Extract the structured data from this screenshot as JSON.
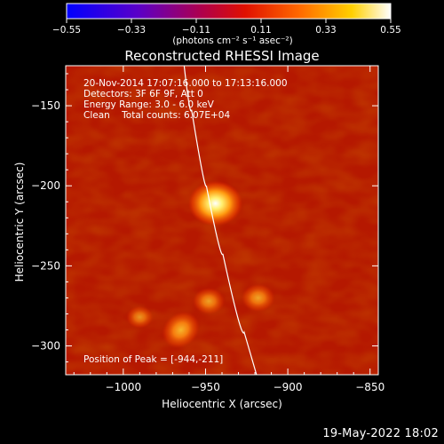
{
  "chart_data": {
    "type": "heatmap",
    "title": "Reconstructed RHESSI Image",
    "xlabel": "Heliocentric X (arcsec)",
    "ylabel": "Heliocentric Y (arcsec)",
    "xlim": [
      -1035,
      -845
    ],
    "ylim": [
      -318,
      -125
    ],
    "x_ticks": [
      -1000,
      -950,
      -900,
      -850
    ],
    "y_ticks": [
      -150,
      -200,
      -250,
      -300
    ],
    "colorbar": {
      "min": -0.55,
      "max": 0.55,
      "ticks": [
        "-0.55",
        "-0.33",
        "-0.11",
        "0.11",
        "0.33",
        "0.55"
      ],
      "units_label": "(photons cm⁻² s⁻¹ asec⁻²)",
      "colormap": "blue-purple-red-orange-yellow-white"
    },
    "info_lines": [
      "20-Nov-2014 17:07:16.000 to 17:13:16.000",
      "Detectors: 3F 6F 9F, Att 0",
      "Energy Range: 3.0 - 6.0 keV",
      "Clean    Total counts: 6.07E+04"
    ],
    "peak_label": "Position of Peak = [-944,-211]",
    "sources": [
      {
        "x": -944,
        "y": -211,
        "intensity": 0.55
      },
      {
        "x": -965,
        "y": -290,
        "intensity": 0.33
      },
      {
        "x": -948,
        "y": -272,
        "intensity": 0.2
      },
      {
        "x": -918,
        "y": -270,
        "intensity": 0.22
      },
      {
        "x": -990,
        "y": -282,
        "intensity": 0.12
      }
    ],
    "limb_curve": [
      {
        "x": -963,
        "y": -125
      },
      {
        "x": -954,
        "y": -180
      },
      {
        "x": -945,
        "y": -220
      },
      {
        "x": -934,
        "y": -265
      },
      {
        "x": -919,
        "y": -318
      }
    ]
  },
  "footer": {
    "timestamp": "19-May-2022 18:02"
  },
  "colors": {
    "background": "#000000",
    "text": "#ffffff",
    "limb": "#ffffff"
  }
}
